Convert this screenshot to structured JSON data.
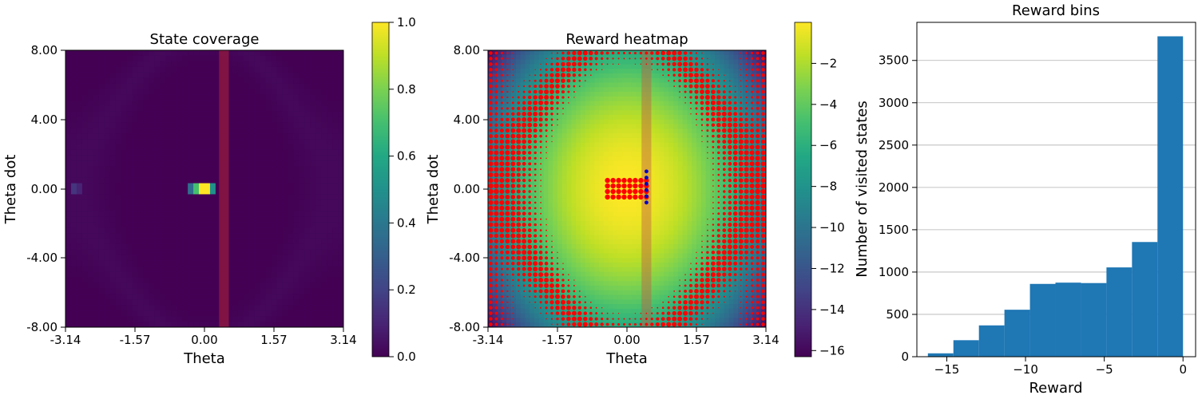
{
  "chart_data": [
    {
      "type": "heatmap",
      "title": "State coverage",
      "xlabel": "Theta",
      "ylabel": "Theta dot",
      "xlim": [
        -3.14,
        3.14
      ],
      "ylim": [
        -8,
        8
      ],
      "xticks": [
        "-3.14",
        "-1.57",
        "0.00",
        "1.57",
        "3.14"
      ],
      "yticks": [
        "8.00",
        "4.00",
        "0.00",
        "-4.00",
        "-8.00"
      ],
      "grid_bins": 50,
      "hot_cells": [
        {
          "theta": -0.25,
          "thetadot": 0.0,
          "value": 0.35
        },
        {
          "theta": -0.12,
          "thetadot": 0.0,
          "value": 0.7
        },
        {
          "theta": 0.0,
          "thetadot": 0.0,
          "value": 1.0
        },
        {
          "theta": 0.12,
          "thetadot": 0.0,
          "value": 0.5
        },
        {
          "theta": -3.0,
          "thetadot": 0.0,
          "value": 0.15
        },
        {
          "theta": -2.88,
          "thetadot": 0.0,
          "value": 0.1
        }
      ],
      "highlight_band": {
        "theta_min": 0.33,
        "theta_max": 0.55,
        "color": "#b22234"
      },
      "colorbar": {
        "min": 0.0,
        "max": 1.0,
        "ticks": [
          "0.0",
          "0.2",
          "0.4",
          "0.6",
          "0.8",
          "1.0"
        ]
      }
    },
    {
      "type": "heatmap",
      "title": "Reward heatmap",
      "xlabel": "Theta",
      "ylabel": "Theta dot",
      "xlim": [
        -3.14,
        3.14
      ],
      "ylim": [
        -8,
        8
      ],
      "xticks": [
        "-3.14",
        "-1.57",
        "0.00",
        "1.57",
        "3.14"
      ],
      "yticks": [
        "8.00",
        "4.00",
        "0.00",
        "-4.00",
        "-8.00"
      ],
      "reward_formula": "-(theta^2 + 0.1*thetadot^2)",
      "highlight_band": {
        "theta_min": 0.33,
        "theta_max": 0.55,
        "color": "#c06040"
      },
      "dot_color": "#ff0000",
      "blue_dot_color": "#0000cc",
      "blue_dots": {
        "theta": 0.44,
        "thetadot_range": [
          -0.8,
          1.0
        ]
      },
      "colorbar": {
        "min": -16.3,
        "max": 0.0,
        "ticks": [
          "-2",
          "-4",
          "-6",
          "-8",
          "-10",
          "-12",
          "-14",
          "-16"
        ]
      }
    },
    {
      "type": "bar",
      "title": "Reward bins",
      "xlabel": "Reward",
      "ylabel": "Number of visited states",
      "xlim": [
        -16.9,
        0.8
      ],
      "ylim": [
        0,
        3950
      ],
      "xticks": [
        "−15",
        "−10",
        "−5",
        "0"
      ],
      "yticks": [
        "0",
        "500",
        "1000",
        "1500",
        "2000",
        "2500",
        "3000",
        "3500"
      ],
      "grid": "horizontal",
      "bar_color": "#1f77b4",
      "bin_edges": [
        -16.2,
        -14.58,
        -12.96,
        -11.34,
        -9.72,
        -8.1,
        -6.48,
        -4.86,
        -3.24,
        -1.62,
        0.0
      ],
      "values": [
        40,
        195,
        370,
        555,
        860,
        875,
        870,
        1055,
        1355,
        3785
      ]
    }
  ]
}
